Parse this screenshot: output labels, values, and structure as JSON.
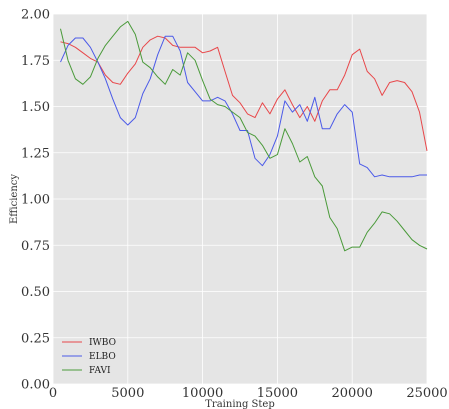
{
  "chart_data": {
    "type": "line",
    "title": "",
    "xlabel": "Training Step",
    "ylabel": "Efficiency",
    "xlim": [
      0,
      25000
    ],
    "ylim": [
      0,
      2.0
    ],
    "x_ticks": [
      0,
      5000,
      10000,
      15000,
      20000,
      25000
    ],
    "x_tick_labels": [
      "0",
      "5000",
      "10000",
      "15000",
      "20000",
      "25000"
    ],
    "y_ticks": [
      0,
      0.25,
      0.5,
      0.75,
      1.0,
      1.25,
      1.5,
      1.75,
      2.0
    ],
    "y_tick_labels": [
      "0.00",
      "0.25",
      "0.50",
      "0.75",
      "1.00",
      "1.25",
      "1.50",
      "1.75",
      "2.00"
    ],
    "grid": true,
    "legend_position": "bottom-left",
    "series": [
      {
        "name": "IWBO",
        "color": "#e8474a",
        "x": [
          500,
          1000,
          1500,
          2000,
          2500,
          3000,
          3500,
          4000,
          4500,
          5000,
          5500,
          6000,
          6500,
          7000,
          7500,
          8000,
          8500,
          9000,
          9500,
          10000,
          10500,
          11000,
          11500,
          12000,
          12500,
          13000,
          13500,
          14000,
          14500,
          15000,
          15500,
          16000,
          16500,
          17000,
          17500,
          18000,
          18500,
          19000,
          19500,
          20000,
          20500,
          21000,
          21500,
          22000,
          22500,
          23000,
          23500,
          24000,
          24500,
          25000
        ],
        "values": [
          1.85,
          1.84,
          1.82,
          1.79,
          1.76,
          1.74,
          1.67,
          1.63,
          1.62,
          1.68,
          1.73,
          1.82,
          1.86,
          1.88,
          1.87,
          1.83,
          1.82,
          1.82,
          1.82,
          1.79,
          1.8,
          1.82,
          1.69,
          1.56,
          1.52,
          1.46,
          1.44,
          1.52,
          1.46,
          1.54,
          1.59,
          1.51,
          1.44,
          1.5,
          1.42,
          1.53,
          1.59,
          1.59,
          1.67,
          1.78,
          1.81,
          1.69,
          1.65,
          1.56,
          1.63,
          1.64,
          1.63,
          1.58,
          1.47,
          1.26
        ]
      },
      {
        "name": "ELBO",
        "color": "#4b5ae8",
        "x": [
          500,
          1000,
          1500,
          2000,
          2500,
          3000,
          3500,
          4000,
          4500,
          5000,
          5500,
          6000,
          6500,
          7000,
          7500,
          8000,
          8500,
          9000,
          9500,
          10000,
          10500,
          11000,
          11500,
          12000,
          12500,
          13000,
          13500,
          14000,
          14500,
          15000,
          15500,
          16000,
          16500,
          17000,
          17500,
          18000,
          18500,
          19000,
          19500,
          20000,
          20500,
          21000,
          21500,
          22000,
          22500,
          23000,
          23500,
          24000,
          24500,
          25000
        ],
        "values": [
          1.74,
          1.83,
          1.87,
          1.87,
          1.82,
          1.74,
          1.65,
          1.54,
          1.44,
          1.4,
          1.44,
          1.57,
          1.65,
          1.78,
          1.88,
          1.88,
          1.8,
          1.63,
          1.58,
          1.53,
          1.53,
          1.55,
          1.53,
          1.46,
          1.37,
          1.37,
          1.22,
          1.18,
          1.24,
          1.34,
          1.53,
          1.47,
          1.51,
          1.42,
          1.55,
          1.38,
          1.38,
          1.46,
          1.51,
          1.47,
          1.19,
          1.17,
          1.12,
          1.13,
          1.12,
          1.12,
          1.12,
          1.12,
          1.13,
          1.13
        ]
      },
      {
        "name": "FAVI",
        "color": "#4a9a3a",
        "x": [
          500,
          1000,
          1500,
          2000,
          2500,
          3000,
          3500,
          4000,
          4500,
          5000,
          5500,
          6000,
          6500,
          7000,
          7500,
          8000,
          8500,
          9000,
          9500,
          10000,
          10500,
          11000,
          11500,
          12000,
          12500,
          13000,
          13500,
          14000,
          14500,
          15000,
          15500,
          16000,
          16500,
          17000,
          17500,
          18000,
          18500,
          19000,
          19500,
          20000,
          20500,
          21000,
          21500,
          22000,
          22500,
          23000,
          23500,
          24000,
          24500,
          25000
        ],
        "values": [
          1.92,
          1.75,
          1.65,
          1.62,
          1.66,
          1.76,
          1.83,
          1.88,
          1.93,
          1.96,
          1.89,
          1.74,
          1.71,
          1.66,
          1.62,
          1.7,
          1.67,
          1.79,
          1.75,
          1.64,
          1.54,
          1.51,
          1.5,
          1.47,
          1.44,
          1.36,
          1.34,
          1.29,
          1.22,
          1.24,
          1.38,
          1.3,
          1.2,
          1.23,
          1.12,
          1.07,
          0.9,
          0.84,
          0.72,
          0.74,
          0.74,
          0.82,
          0.87,
          0.93,
          0.92,
          0.88,
          0.83,
          0.78,
          0.75,
          0.73
        ]
      }
    ]
  }
}
